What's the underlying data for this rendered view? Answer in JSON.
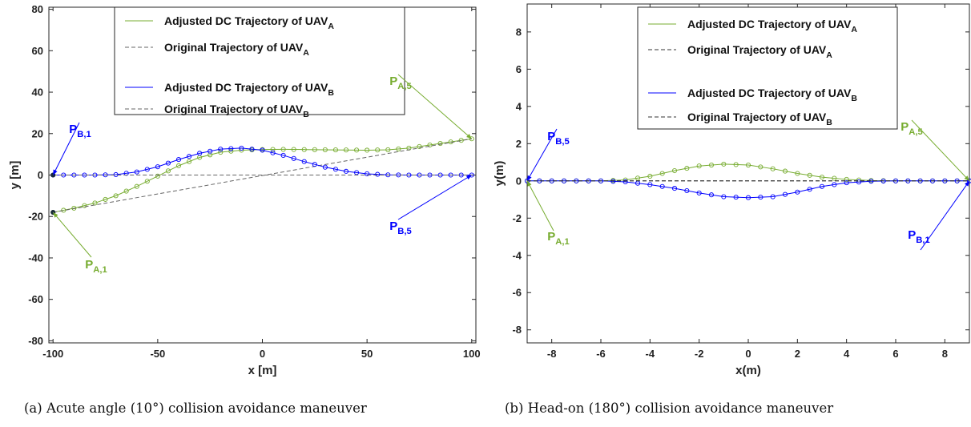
{
  "chart_data": [
    {
      "type": "line",
      "caption": "(a) Acute angle (10°) collision avoidance maneuver",
      "xlabel": "x [m]",
      "ylabel": "y [m]",
      "xlim": [
        -102,
        102
      ],
      "ylim": [
        -81,
        81
      ],
      "xticks": [
        -100,
        -50,
        0,
        50,
        100
      ],
      "yticks": [
        -80,
        -60,
        -40,
        -20,
        0,
        20,
        40,
        60,
        80
      ],
      "legend_position": "top-center",
      "series": [
        {
          "name": "Adjusted DC Trajectory of UAV",
          "sub": "A",
          "color": "#77AC30",
          "style": "solid-with-circles",
          "x": [
            -100,
            -90,
            -80,
            -70,
            -60,
            -50,
            -40,
            -30,
            -20,
            -10,
            0,
            10,
            20,
            30,
            40,
            50,
            60,
            70,
            80,
            90,
            100
          ],
          "y": [
            -18,
            -16,
            -13.5,
            -10,
            -5.5,
            -0.5,
            4.5,
            8.5,
            11,
            12,
            12.3,
            12.4,
            12.3,
            12.2,
            12.1,
            12,
            12.2,
            13,
            14.5,
            16,
            17.5
          ]
        },
        {
          "name": "Original Trajectory of UAV",
          "sub": "A",
          "color": "#666666",
          "style": "dashed",
          "x": [
            -100,
            100
          ],
          "y": [
            -18,
            17.5
          ]
        },
        {
          "name": "Adjusted DC Trajectory of UAV",
          "sub": "B",
          "color": "#0000FF",
          "style": "solid-with-circles",
          "x": [
            -100,
            -90,
            -80,
            -70,
            -60,
            -50,
            -40,
            -30,
            -20,
            -10,
            0,
            10,
            20,
            30,
            40,
            50,
            60,
            70,
            80,
            90,
            100
          ],
          "y": [
            0,
            0,
            0,
            0.2,
            1.5,
            4,
            7.5,
            10.5,
            12.5,
            13,
            12,
            9.5,
            6.5,
            3.8,
            1.8,
            0.6,
            0.1,
            0,
            0,
            0,
            0
          ]
        },
        {
          "name": "Original Trajectory of UAV",
          "sub": "B",
          "color": "#666666",
          "style": "dashed",
          "x": [
            -100,
            100
          ],
          "y": [
            0,
            0
          ]
        }
      ],
      "annotations": [
        {
          "main": "P",
          "sub": "B,1",
          "color": "#0000FF",
          "point": [
            -100,
            0
          ]
        },
        {
          "main": "P",
          "sub": "A,1",
          "color": "#77AC30",
          "point": [
            -100,
            -18
          ]
        },
        {
          "main": "P",
          "sub": "A,5",
          "color": "#77AC30",
          "point": [
            100,
            17.5
          ]
        },
        {
          "main": "P",
          "sub": "B,5",
          "color": "#0000FF",
          "point": [
            100,
            0
          ]
        }
      ]
    },
    {
      "type": "line",
      "caption": "(b) Head-on (180°) collision avoidance maneuver",
      "xlabel": "x(m)",
      "ylabel": "y(m)",
      "xlim": [
        -9,
        9
      ],
      "ylim": [
        -8.7,
        9.5
      ],
      "xticks": [
        -8,
        -6,
        -4,
        -2,
        0,
        2,
        4,
        6,
        8
      ],
      "yticks": [
        -8,
        -6,
        -4,
        -2,
        0,
        2,
        4,
        6,
        8
      ],
      "legend_position": "top-center",
      "series": [
        {
          "name": "Adjusted DC Trajectory of UAV",
          "sub": "A",
          "color": "#77AC30",
          "style": "solid-with-circles",
          "x": [
            -9,
            -8,
            -7,
            -6,
            -5,
            -4,
            -3,
            -2,
            -1,
            0,
            1,
            2,
            3,
            4,
            5,
            6,
            7,
            8,
            9
          ],
          "y": [
            0,
            0,
            0,
            0,
            0.05,
            0.25,
            0.55,
            0.8,
            0.9,
            0.85,
            0.65,
            0.4,
            0.2,
            0.08,
            0.02,
            0,
            0,
            0,
            0
          ]
        },
        {
          "name": "Original Trajectory of UAV",
          "sub": "A",
          "color": "#333333",
          "style": "dashed",
          "x": [
            -9,
            9
          ],
          "y": [
            0,
            0
          ]
        },
        {
          "name": "Adjusted DC Trajectory of UAV",
          "sub": "B",
          "color": "#0000FF",
          "style": "solid-with-circles",
          "x": [
            -9,
            -8,
            -7,
            -6,
            -5,
            -4,
            -3,
            -2,
            -1,
            0,
            1,
            2,
            3,
            4,
            5,
            6,
            7,
            8,
            9
          ],
          "y": [
            0,
            0,
            0,
            0,
            -0.05,
            -0.2,
            -0.4,
            -0.65,
            -0.85,
            -0.9,
            -0.85,
            -0.6,
            -0.3,
            -0.1,
            -0.02,
            0,
            0,
            0,
            0
          ]
        },
        {
          "name": "Original Trajectory of UAV",
          "sub": "B",
          "color": "#333333",
          "style": "dashed",
          "x": [
            -9,
            9
          ],
          "y": [
            0,
            0
          ]
        }
      ],
      "annotations": [
        {
          "main": "P",
          "sub": "B,5",
          "color": "#0000FF",
          "point": [
            -9,
            0
          ]
        },
        {
          "main": "P",
          "sub": "A,1",
          "color": "#77AC30",
          "point": [
            -9,
            0
          ]
        },
        {
          "main": "P",
          "sub": "A,5",
          "color": "#77AC30",
          "point": [
            9,
            0
          ]
        },
        {
          "main": "P",
          "sub": "B,1",
          "color": "#0000FF",
          "point": [
            9,
            0
          ]
        }
      ]
    }
  ]
}
